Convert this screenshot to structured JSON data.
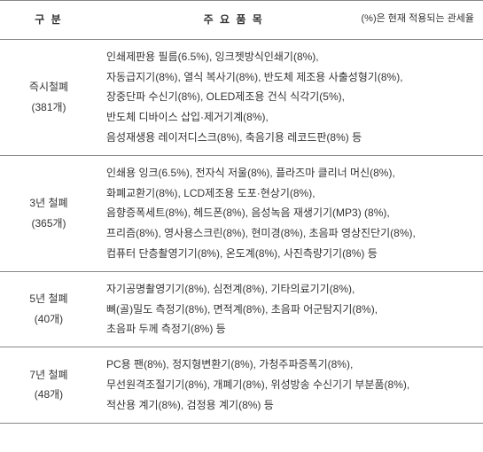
{
  "header": {
    "col1": "구   분",
    "col2": "주 요 품 목",
    "note": "(%)은 현재 적용되는 관세율"
  },
  "rows": [
    {
      "title": "즉시철폐",
      "count": "(381개)",
      "items": [
        "인쇄제판용 필름(6.5%),  잉크젯방식인쇄기(8%),",
        "자동급지기(8%),  열식 복사기(8%),  반도체 제조용 사출성형기(8%),",
        "장중단파 수신기(8%),   OLED제조용 건식 식각기(5%),",
        "반도체 디바이스 삽입·제거기계(8%),",
        "음성재생용 레이저디스크(8%),  축음기용 레코드판(8%) 등"
      ]
    },
    {
      "title": "3년 철폐",
      "count": "(365개)",
      "items": [
        "인쇄용 잉크(6.5%),  전자식 저울(8%),   플라즈마 클리너 머신(8%),",
        "화폐교환기(8%),   LCD제조용 도포·현상기(8%),",
        "음향증폭세트(8%),  헤드폰(8%),  음성녹음 재생기기(MP3) (8%),",
        "프리즘(8%),  영사용스크린(8%),  현미경(8%),  초음파 영상진단기(8%),",
        "컴퓨터 단층촬영기기(8%),  온도계(8%),  사진측량기기(8%) 등"
      ]
    },
    {
      "title": "5년 철폐",
      "count": "(40개)",
      "items": [
        "자기공명촬영기기(8%),  심전계(8%),  기타의료기기(8%),",
        "뼈(골)밀도 측정기(8%),  면적계(8%),  초음파 어군탐지기(8%),",
        "초음파 두께 측정기(8%) 등"
      ]
    },
    {
      "title": "7년 철폐",
      "count": "(48개)",
      "items": [
        "PC용 팬(8%),  정지형변환기(8%),  가청주파증폭기(8%),",
        "무선원격조절기기(8%),  개폐기(8%),  위성방송 수신기기 부분품(8%),",
        "적산용 계기(8%),  검정용 계기(8%) 등"
      ]
    }
  ]
}
